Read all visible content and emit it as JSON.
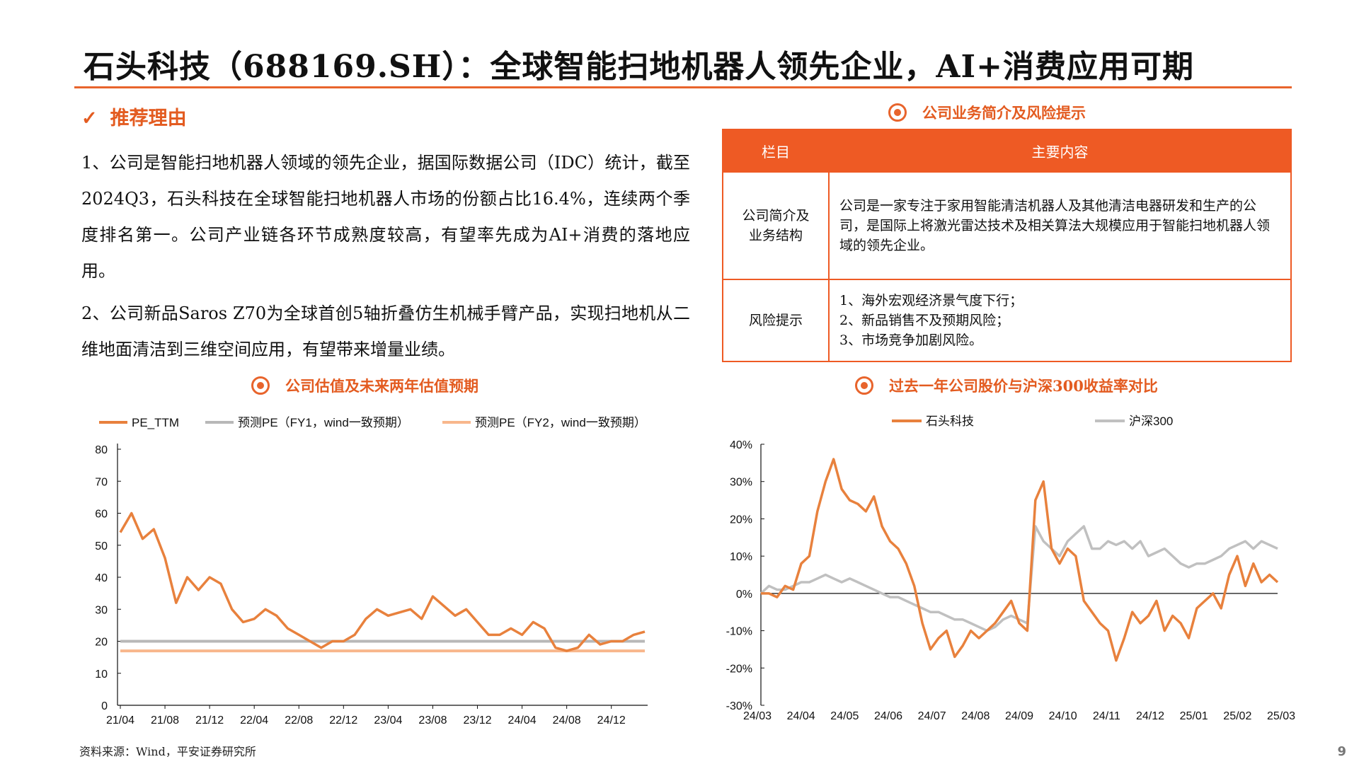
{
  "title": "石头科技（688169.SH）：全球智能扫地机器人领先企业，AI+消费应用可期",
  "reasons": {
    "heading_check": "✓",
    "heading": "推荐理由",
    "p1": "1、公司是智能扫地机器人领域的领先企业，据国际数据公司（IDC）统计，截至2024Q3，石头科技在全球智能扫地机器人市场的份额占比16.4%，连续两个季度排名第一。公司产业链各环节成熟度较高，有望率先成为AI+消费的落地应用。",
    "p2": "2、公司新品Saros Z70为全球首创5轴折叠仿生机械手臂产品，实现扫地机从二维地面清洁到三维空间应用，有望带来增量业绩。"
  },
  "business": {
    "section_title": "公司业务简介及风险提示",
    "col1_header": "栏目",
    "col2_header": "主要内容",
    "row1_label": "公司简介及业务结构",
    "row1_content": "公司是一家专注于家用智能清洁机器人及其他清洁电器研发和生产的公司，是国际上将激光雷达技术及相关算法大规模应用于智能扫地机器人领域的领先企业。",
    "row2_label": "风险提示",
    "row2_items": [
      "1、海外宏观经济景气度下行；",
      "2、新品销售不及预期风险；",
      "3、市场竞争加剧风险。"
    ]
  },
  "colors": {
    "accent": "#e8642c",
    "header_bg": "#ee5a24",
    "pe": "#e8813d",
    "fy1": "#b8b8b8",
    "fy2": "#f8b78c",
    "hs300": "#c0c0c0"
  },
  "chart_data": [
    {
      "type": "line",
      "title": "公司估值及未来两年估值预期",
      "x_ticks": [
        "21/04",
        "21/08",
        "21/12",
        "22/04",
        "22/08",
        "22/12",
        "23/04",
        "23/08",
        "23/12",
        "24/04",
        "24/08",
        "24/12"
      ],
      "y_ticks": [
        0,
        10,
        20,
        30,
        40,
        50,
        60,
        70,
        80
      ],
      "ylim": [
        0,
        80
      ],
      "legend_position": "top",
      "series": [
        {
          "name": "PE_TTM",
          "color": "#e8813d",
          "x": [
            "2021-04",
            "2021-05",
            "2021-06",
            "2021-07",
            "2021-08",
            "2021-09",
            "2021-10",
            "2021-11",
            "2021-12",
            "2022-01",
            "2022-02",
            "2022-03",
            "2022-04",
            "2022-05",
            "2022-06",
            "2022-07",
            "2022-08",
            "2022-09",
            "2022-10",
            "2022-11",
            "2022-12",
            "2023-01",
            "2023-02",
            "2023-03",
            "2023-04",
            "2023-05",
            "2023-06",
            "2023-07",
            "2023-08",
            "2023-09",
            "2023-10",
            "2023-11",
            "2023-12",
            "2024-01",
            "2024-02",
            "2024-03",
            "2024-04",
            "2024-05",
            "2024-06",
            "2024-07",
            "2024-08",
            "2024-09",
            "2024-10",
            "2024-11",
            "2024-12",
            "2025-01",
            "2025-02",
            "2025-03"
          ],
          "values": [
            54,
            60,
            52,
            55,
            46,
            32,
            40,
            36,
            40,
            38,
            30,
            26,
            27,
            30,
            28,
            24,
            22,
            20,
            18,
            20,
            20,
            22,
            27,
            30,
            28,
            29,
            30,
            27,
            34,
            31,
            28,
            30,
            26,
            22,
            22,
            24,
            22,
            26,
            24,
            18,
            17,
            18,
            22,
            19,
            20,
            20,
            22,
            23
          ]
        },
        {
          "name": "预测PE（FY1，wind一致预期）",
          "color": "#b8b8b8",
          "x": [
            "2021-04",
            "2025-03"
          ],
          "values": [
            20,
            20
          ]
        },
        {
          "name": "预测PE（FY2，wind一致预期）",
          "color": "#f8b78c",
          "x": [
            "2021-04",
            "2025-03"
          ],
          "values": [
            17,
            17
          ]
        }
      ]
    },
    {
      "type": "line",
      "title": "过去一年公司股价与沪深300收益率对比",
      "x_ticks": [
        "24/03",
        "24/04",
        "24/05",
        "24/06",
        "24/07",
        "24/08",
        "24/09",
        "24/10",
        "24/11",
        "24/12",
        "25/01",
        "25/02",
        "25/03"
      ],
      "y_ticks": [
        "40%",
        "30%",
        "20%",
        "10%",
        "0%",
        "-10%",
        "-20%",
        "-30%"
      ],
      "ylim": [
        -30,
        40
      ],
      "legend_position": "top",
      "series": [
        {
          "name": "石头科技",
          "color": "#e8813d",
          "values": [
            0,
            0,
            -1,
            2,
            1,
            8,
            10,
            22,
            30,
            36,
            28,
            25,
            24,
            22,
            26,
            18,
            14,
            12,
            8,
            2,
            -8,
            -15,
            -12,
            -10,
            -17,
            -14,
            -10,
            -12,
            -10,
            -8,
            -5,
            -2,
            -8,
            -10,
            25,
            30,
            12,
            8,
            12,
            10,
            -2,
            -5,
            -8,
            -10,
            -18,
            -12,
            -5,
            -8,
            -6,
            -2,
            -10,
            -6,
            -8,
            -12,
            -4,
            -2,
            0,
            -4,
            5,
            10,
            2,
            8,
            3,
            5,
            3
          ]
        },
        {
          "name": "沪深300",
          "color": "#c0c0c0",
          "values": [
            0,
            2,
            1,
            1,
            2,
            3,
            3,
            4,
            5,
            4,
            3,
            4,
            3,
            2,
            1,
            0,
            -1,
            -1,
            -2,
            -3,
            -4,
            -5,
            -5,
            -6,
            -7,
            -7,
            -8,
            -9,
            -10,
            -9,
            -7,
            -6,
            -7,
            -8,
            18,
            14,
            12,
            10,
            14,
            16,
            18,
            12,
            12,
            14,
            13,
            14,
            12,
            14,
            10,
            11,
            12,
            10,
            8,
            7,
            8,
            8,
            9,
            10,
            12,
            13,
            14,
            12,
            14,
            13,
            12
          ]
        }
      ]
    }
  ],
  "valuation_section_title": "公司估值及未来两年估值预期",
  "price_section_title": "过去一年公司股价与沪深300收益率对比",
  "source": "资料来源：Wind，平安证券研究所",
  "page_number": "9"
}
